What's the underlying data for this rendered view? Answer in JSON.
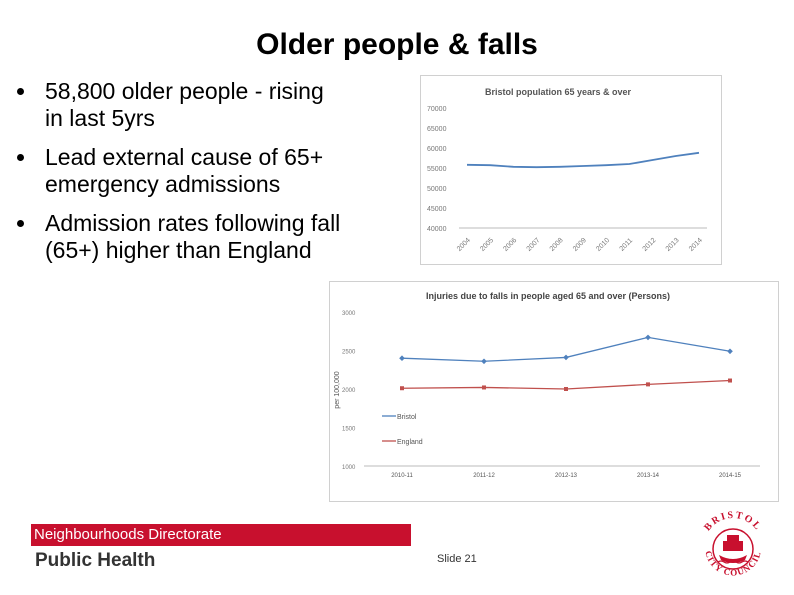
{
  "slide": {
    "title": "Older people & falls",
    "bullets": [
      "58,800 older people - rising in last 5yrs",
      "Lead external cause of 65+ emergency admissions",
      "Admission rates following fall (65+) higher than England"
    ],
    "footer_directorate": "Neighbourhoods Directorate",
    "footer_brand": "Public Health",
    "slide_number": "Slide 21",
    "logo_text_top": "BRISTOL",
    "logo_text_bottom": "CITY COUNCIL"
  },
  "colors": {
    "accent_red": "#c8102e",
    "bristol_blue": "#4f81bd",
    "england_red": "#c0504d"
  },
  "chart_data": [
    {
      "type": "line",
      "title": "Bristol population 65 years & over",
      "categories": [
        "2004",
        "2005",
        "2006",
        "2007",
        "2008",
        "2009",
        "2010",
        "2011",
        "2012",
        "2013",
        "2014"
      ],
      "y_ticks": [
        "70000",
        "65000",
        "60000",
        "55000",
        "50000",
        "45000",
        "40000"
      ],
      "ylim": [
        40000,
        70000
      ],
      "series": [
        {
          "values": [
            55800,
            55700,
            55300,
            55200,
            55300,
            55500,
            55700,
            56000,
            57000,
            58000,
            58800
          ]
        }
      ],
      "legend": "none"
    },
    {
      "type": "line",
      "title": "Injuries due to falls in people aged 65 and over (Persons)",
      "ylabel": "per 100,000",
      "categories": [
        "2010-11",
        "2011-12",
        "2012-13",
        "2013-14",
        "2014-15"
      ],
      "y_ticks": [
        "3000",
        "2500",
        "2000",
        "1500",
        "1000"
      ],
      "ylim": [
        1000,
        3000
      ],
      "series": [
        {
          "name": "Bristol",
          "values": [
            2400,
            2360,
            2410,
            2670,
            2490
          ]
        },
        {
          "name": "England",
          "values": [
            2010,
            2020,
            2000,
            2060,
            2110
          ]
        }
      ],
      "legend": "left"
    }
  ]
}
